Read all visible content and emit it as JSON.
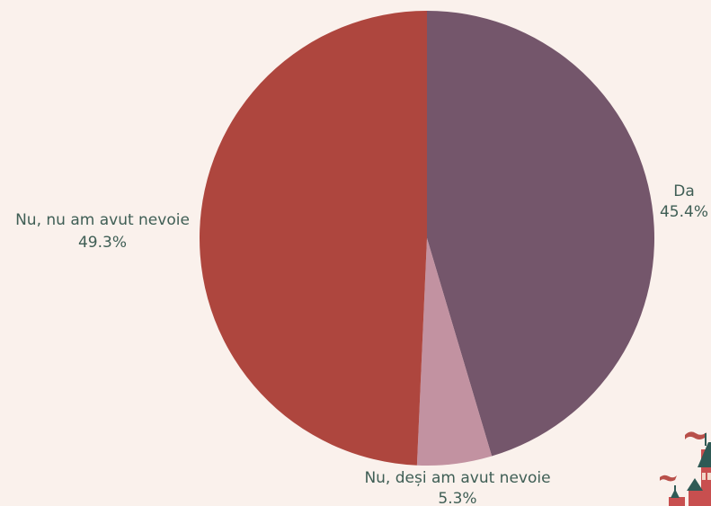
{
  "chart_data": {
    "type": "pie",
    "title": "",
    "slices": [
      {
        "label": "Da",
        "percent_label": "45.4%",
        "value": 45.4,
        "color": "#74566b"
      },
      {
        "label": "Nu, deși am avut nevoie",
        "percent_label": "5.3%",
        "value": 5.3,
        "color": "#c292a1"
      },
      {
        "label": "Nu, nu am avut nevoie",
        "percent_label": "49.3%",
        "value": 49.3,
        "color": "#ae463e"
      }
    ],
    "legend": "none",
    "label_color": "#3f5e55"
  }
}
